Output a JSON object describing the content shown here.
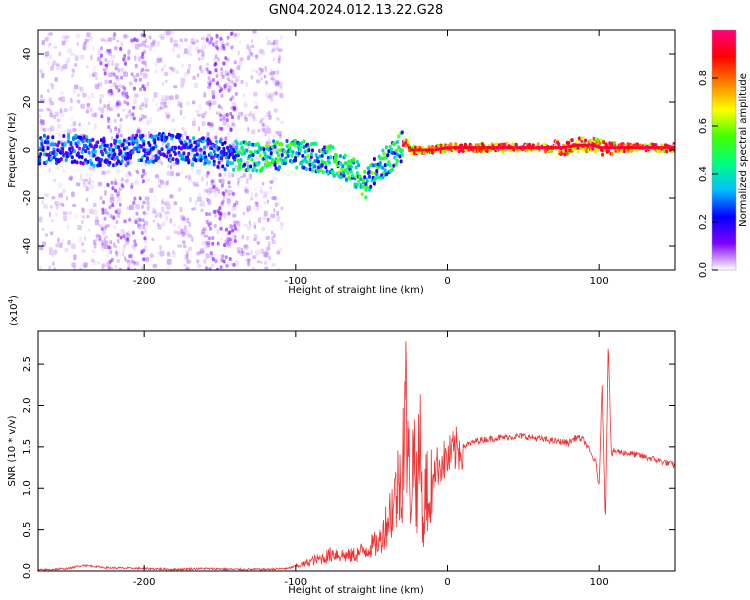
{
  "figure": {
    "title": "GN04.2024.012.13.22.G28"
  },
  "chart_data": [
    {
      "type": "heatmap",
      "xlabel": "Height of straight line (km)",
      "ylabel": "Frequency (Hz)",
      "xlim": [
        -270,
        150
      ],
      "ylim": [
        -50,
        50
      ],
      "x_ticks": [
        -200,
        -100,
        0,
        100
      ],
      "y_ticks": [
        -40,
        -20,
        0,
        20,
        40
      ],
      "grid": false,
      "colorbar": {
        "label": "Normalized spectral amplitude",
        "range": [
          0,
          1
        ],
        "ticks": [
          0.0,
          0.2,
          0.4,
          0.6,
          0.8
        ],
        "colormap": [
          "#ffffff",
          "#8000ff",
          "#0000ff",
          "#00c0ff",
          "#00ff80",
          "#40ff00",
          "#ffff00",
          "#ff8000",
          "#ff0000",
          "#ff0080"
        ]
      },
      "trace": {
        "x": [
          -270,
          -250,
          -230,
          -210,
          -190,
          -170,
          -150,
          -130,
          -110,
          -100,
          -90,
          -80,
          -70,
          -60,
          -55,
          -50,
          -45,
          -40,
          -35,
          -30,
          -28,
          -25,
          -20,
          -10,
          0,
          20,
          40,
          60,
          75,
          85,
          95,
          100,
          105,
          150
        ],
        "y": [
          0,
          1,
          -1,
          0,
          1,
          0,
          -2,
          -3,
          -2,
          -2,
          -3,
          -4,
          -6,
          -11,
          -14,
          -10,
          -7,
          -4,
          -1,
          2,
          3,
          0,
          0,
          0,
          1,
          1,
          1,
          1,
          1,
          2,
          2,
          1,
          1,
          1
        ]
      }
    },
    {
      "type": "line",
      "xlabel": "Height of straight line (km)",
      "ylabel": "SNR (10 * v/v)",
      "y_multiplier": "(x10",
      "y_multiplier_exp": "4",
      "y_multiplier_close": ")",
      "xlim": [
        -270,
        150
      ],
      "ylim": [
        0,
        2.9
      ],
      "x_ticks": [
        -200,
        -100,
        0,
        100
      ],
      "y_ticks": [
        0.0,
        0.5,
        1.0,
        1.5,
        2.0,
        2.5
      ],
      "grid": false,
      "series": [
        {
          "color": "#ee3333",
          "x": [
            -270,
            -250,
            -240,
            -225,
            -200,
            -180,
            -160,
            -140,
            -120,
            -105,
            -100,
            -95,
            -90,
            -85,
            -80,
            -75,
            -70,
            -65,
            -60,
            -55,
            -50,
            -45,
            -40,
            -35,
            -30,
            -28,
            -26,
            -24,
            -22,
            -20,
            -18,
            -16,
            -14,
            -12,
            -10,
            -5,
            0,
            5,
            10,
            20,
            30,
            40,
            50,
            60,
            70,
            80,
            85,
            90,
            95,
            98,
            100,
            102,
            104,
            106,
            108,
            110,
            120,
            130,
            140,
            150
          ],
          "y": [
            0.01,
            0.03,
            0.07,
            0.04,
            0.03,
            0.02,
            0.03,
            0.02,
            0.02,
            0.03,
            0.06,
            0.08,
            0.12,
            0.14,
            0.17,
            0.22,
            0.19,
            0.18,
            0.2,
            0.25,
            0.3,
            0.34,
            0.6,
            0.85,
            1.2,
            2.2,
            1.3,
            1.0,
            1.5,
            0.9,
            1.6,
            0.4,
            1.2,
            0.5,
            1.2,
            1.3,
            1.35,
            1.45,
            1.5,
            1.58,
            1.6,
            1.62,
            1.63,
            1.6,
            1.57,
            1.55,
            1.62,
            1.58,
            1.4,
            1.3,
            1.0,
            2.3,
            0.55,
            2.8,
            1.4,
            1.45,
            1.42,
            1.38,
            1.33,
            1.28
          ]
        }
      ]
    }
  ]
}
